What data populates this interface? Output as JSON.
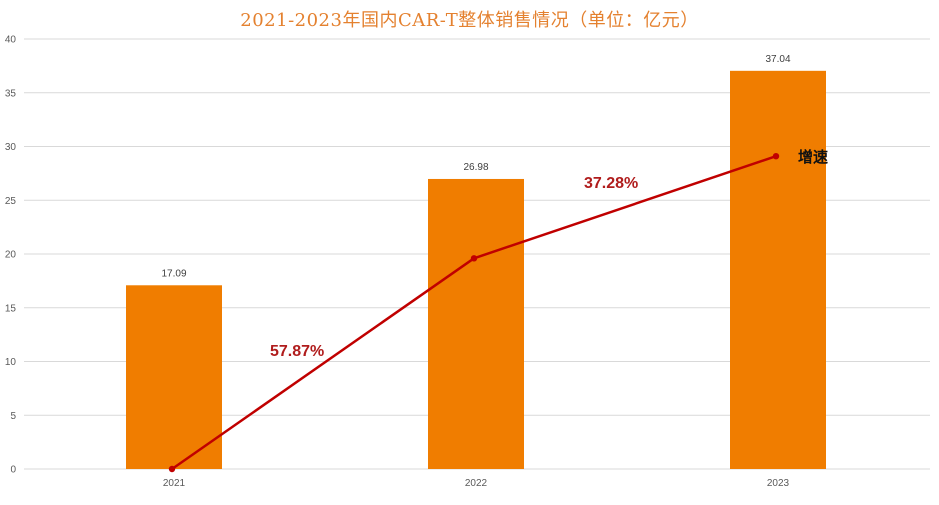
{
  "colors": {
    "bar": "#f07d00",
    "line": "#c00000",
    "title": "#e4812f",
    "grid": "#d9d9d9"
  },
  "chart_data": {
    "type": "bar",
    "title": "2021-2023年国内CAR-T整体销售情况（单位：亿元）",
    "categories": [
      "2021",
      "2022",
      "2023"
    ],
    "values": [
      17.09,
      26.98,
      37.04
    ],
    "value_labels": [
      "17.09",
      "26.98",
      "37.04"
    ],
    "ylim": [
      0,
      40
    ],
    "yticks": [
      0,
      5,
      10,
      15,
      20,
      25,
      30,
      35,
      40
    ],
    "grid": true,
    "line_series": {
      "name": "增速",
      "values": [
        0,
        19.6,
        29.1
      ]
    },
    "annotations": [
      "57.87%",
      "37.28%"
    ],
    "legend_label": "增速"
  }
}
